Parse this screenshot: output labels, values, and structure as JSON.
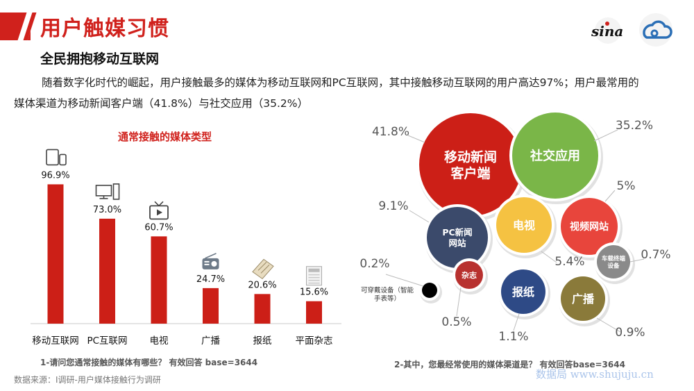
{
  "header": {
    "title": "用户触媒习惯",
    "subtitle": "全民拥抱移动互联网",
    "paragraph": "随着数字化时代的崛起，用户接触最多的媒体为移动互联网和PC互联网，其中接触移动互联网的用户高达97%；用户最常用的媒体渠道为移动新闻客户端（41.8%）与社交应用（35.2%）",
    "logos": [
      "sina",
      "weibo"
    ],
    "logo_sina_text": "sina"
  },
  "accent_color": "#d0211c",
  "chart_data": [
    {
      "type": "bar",
      "title": "通常接触的媒体类型",
      "categories": [
        "移动互联网",
        "PC互联网",
        "电视",
        "广播",
        "报纸",
        "平面杂志"
      ],
      "values": [
        96.9,
        73.0,
        60.7,
        24.7,
        20.6,
        15.6
      ],
      "value_labels": [
        "96.9%",
        "73.0%",
        "60.7%",
        "24.7%",
        "20.6%",
        "15.6%"
      ],
      "icons": [
        "mobile-devices-icon",
        "desktop-computer-icon",
        "television-icon",
        "radio-icon",
        "newspaper-icon",
        "magazine-icon"
      ],
      "ylim": [
        0,
        100
      ],
      "bar_color": "#cc1f17",
      "caption": "1-请问您通常接触的媒体有哪些？  有效回答 base=3644"
    },
    {
      "type": "bubble",
      "caption": "2-其中，您最经常使用的媒体渠道是？  有效回答base=3644",
      "items": [
        {
          "name": "移动新闻客户端",
          "value": 41.8,
          "label": "41.8%",
          "color": "#cc1f17"
        },
        {
          "name": "社交应用",
          "value": 35.2,
          "label": "35.2%",
          "color": "#7ab648"
        },
        {
          "name": "PC新闻网站",
          "value": 9.1,
          "label": "9.1%",
          "color": "#3b4a6b"
        },
        {
          "name": "视频网站",
          "value": 5.0,
          "label": "5%",
          "color": "#e8453c"
        },
        {
          "name": "电视",
          "value": 5.4,
          "label": "5.4%",
          "color": "#f5c242"
        },
        {
          "name": "车载终端设备",
          "value": 0.7,
          "label": "0.7%",
          "color": "#8a8a8a"
        },
        {
          "name": "杂志",
          "value": 0.5,
          "label": "0.5%",
          "color": "#b8312f"
        },
        {
          "name": "可穿戴设备（智能手表等）",
          "value": 0.2,
          "label": "0.2%",
          "color": "#000000"
        },
        {
          "name": "报纸",
          "value": 1.1,
          "label": "1.1%",
          "color": "#2e4a86"
        },
        {
          "name": "广播",
          "value": 0.9,
          "label": "0.9%",
          "color": "#8a7a3a"
        }
      ]
    }
  ],
  "footer": {
    "source": "数据来源：I调研-用户媒体接触行为调研",
    "watermark": "数据局 www.shujuju.cn"
  }
}
